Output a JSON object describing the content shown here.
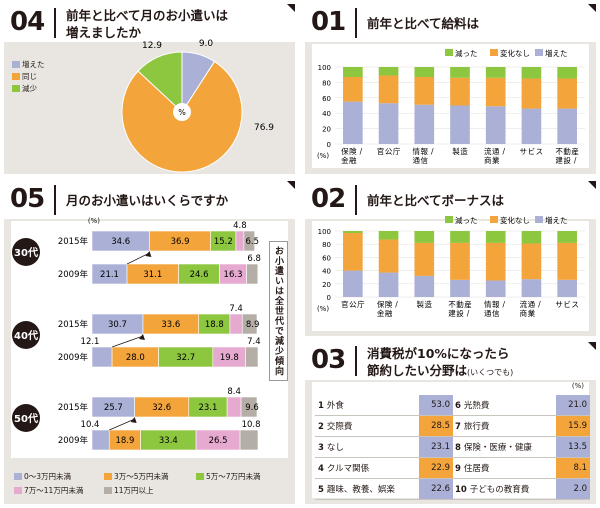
{
  "panel04": {
    "number": "04",
    "title_line1": "前年と比べて月のお小遣いは",
    "title_line2": "増えましたか",
    "center_label": "%",
    "legend": [
      "増えた",
      "同じ",
      "減少"
    ]
  },
  "panel01": {
    "number": "01",
    "title": "前年と比べて給料は",
    "legend": [
      "減った",
      "変化なし",
      "増えた"
    ],
    "yticks": [
      "100",
      "80",
      "60",
      "40",
      "20",
      "0"
    ],
    "yunit": "(%)",
    "categories": [
      "保険・金融",
      "官公庁",
      "情報・通信",
      "製造",
      "流通・商業",
      "サービス",
      "不動産・建設"
    ],
    "cat_display": [
      "保金\n険融\n/",
      "官\n公\n庁",
      "情通\n報信\n/",
      "製\n造",
      "流商\n通業\n/",
      "サ\nビ\nス",
      "不建\n動設\n産/"
    ]
  },
  "panel05": {
    "number": "05",
    "title": "月のお小遣いはいくらですか",
    "unit": "(%)",
    "vertical_note": "お小遣いは全世代で減少傾向",
    "groups": [
      {
        "age": "30代",
        "rows": [
          {
            "year": "2015年",
            "values": [
              34.6,
              36.9,
              15.2,
              4.8,
              6.5
            ]
          },
          {
            "year": "2009年",
            "values": [
              21.1,
              31.1,
              24.6,
              16.3,
              6.8
            ]
          }
        ]
      },
      {
        "age": "40代",
        "rows": [
          {
            "year": "2015年",
            "values": [
              30.7,
              33.6,
              18.8,
              7.4,
              8.9
            ]
          },
          {
            "year": "2009年",
            "values": [
              12.1,
              28.0,
              32.7,
              19.8,
              7.4
            ]
          }
        ]
      },
      {
        "age": "50代",
        "rows": [
          {
            "year": "2015年",
            "values": [
              25.7,
              32.6,
              23.1,
              8.4,
              9.6
            ]
          },
          {
            "year": "2009年",
            "values": [
              10.4,
              18.9,
              33.4,
              26.5,
              10.8
            ]
          }
        ]
      }
    ],
    "legend": [
      "0〜3万円未満",
      "3万〜5万円未満",
      "5万〜7万円未満",
      "7万〜11万円未満",
      "11万円以上"
    ]
  },
  "panel02": {
    "number": "02",
    "title": "前年と比べてボーナスは",
    "legend": [
      "減った",
      "変化なし",
      "増えた"
    ],
    "yticks": [
      "100",
      "80",
      "60",
      "40",
      "20",
      "0"
    ],
    "yunit": "(%)",
    "categories": [
      "官公庁",
      "保険・金融",
      "製造",
      "不動産・建設",
      "情報・通信",
      "流通・商業",
      "サービス"
    ],
    "cat_display": [
      "官\n公\n庁",
      "保金\n険融\n/",
      "製\n造",
      "不建\n動設\n産/",
      "情通\n報信\n/",
      "流商\n通業\n/",
      "サ\nビ\nス"
    ]
  },
  "panel03": {
    "number": "03",
    "title_line1": "消費税が10%になったら",
    "title_line2": "節約したい分野は",
    "title_note": "(いくつでも)",
    "unit": "(%)",
    "left": [
      {
        "rank": "1",
        "label": "外食",
        "value": "53.0"
      },
      {
        "rank": "2",
        "label": "交際費",
        "value": "28.5"
      },
      {
        "rank": "3",
        "label": "なし",
        "value": "23.1"
      },
      {
        "rank": "4",
        "label": "クルマ関係",
        "value": "22.9"
      },
      {
        "rank": "5",
        "label": "趣味、教養、娯楽",
        "value": "22.6"
      }
    ],
    "right": [
      {
        "rank": "6",
        "label": "光熱費",
        "value": "21.0"
      },
      {
        "rank": "7",
        "label": "旅行費",
        "value": "15.9"
      },
      {
        "rank": "8",
        "label": "保険・医療・健康",
        "value": "13.5"
      },
      {
        "rank": "9",
        "label": "住居費",
        "value": "8.1"
      },
      {
        "rank": "10",
        "label": "子どもの教育費",
        "value": "2.0"
      }
    ]
  },
  "colors": {
    "blue": "#aab0d6",
    "orange": "#f3a43a",
    "green": "#8dc63f",
    "pink": "#e6a9cf",
    "gray": "#b5aea6"
  },
  "chart_data": [
    {
      "id": "chart04",
      "type": "pie",
      "labels": [
        "増えた",
        "同じ",
        "減少"
      ],
      "values": [
        9.0,
        76.9,
        12.9
      ],
      "value_labels": [
        "9.0",
        "76.9",
        "12.9"
      ]
    },
    {
      "id": "chart01",
      "type": "bar",
      "stacked": true,
      "categories": [
        "保険・金融",
        "官公庁",
        "情報・通信",
        "製造",
        "流通・商業",
        "サービス",
        "不動産・建設"
      ],
      "series": [
        {
          "name": "増えた",
          "values": [
            55,
            53,
            51,
            50,
            49,
            46,
            46
          ]
        },
        {
          "name": "変化なし",
          "values": [
            32,
            36,
            36,
            36,
            37,
            39,
            39
          ]
        },
        {
          "name": "減った",
          "values": [
            13,
            11,
            13,
            14,
            14,
            15,
            15
          ]
        }
      ],
      "ylim": [
        0,
        100
      ]
    },
    {
      "id": "chart02",
      "type": "bar",
      "stacked": true,
      "categories": [
        "官公庁",
        "保険・金融",
        "製造",
        "不動産・建設",
        "情報・通信",
        "流通・商業",
        "サービス"
      ],
      "series": [
        {
          "name": "増えた",
          "values": [
            40,
            37,
            32,
            26,
            25,
            27,
            26
          ]
        },
        {
          "name": "変化なし",
          "values": [
            57,
            50,
            50,
            56,
            57,
            54,
            56
          ]
        },
        {
          "name": "減った",
          "values": [
            3,
            13,
            18,
            18,
            18,
            19,
            18
          ]
        }
      ],
      "ylim": [
        0,
        100
      ]
    },
    {
      "id": "chart05",
      "type": "bar",
      "orientation": "horizontal",
      "stacked": true,
      "categories": [
        "30代 2015年",
        "30代 2009年",
        "40代 2015年",
        "40代 2009年",
        "50代 2015年",
        "50代 2009年"
      ],
      "series": [
        {
          "name": "0〜3万円未満",
          "values": [
            34.6,
            21.1,
            30.7,
            12.1,
            25.7,
            10.4
          ]
        },
        {
          "name": "3万〜5万円未満",
          "values": [
            36.9,
            31.1,
            33.6,
            28.0,
            32.6,
            18.9
          ]
        },
        {
          "name": "5万〜7万円未満",
          "values": [
            15.2,
            24.6,
            18.8,
            32.7,
            23.1,
            33.4
          ]
        },
        {
          "name": "7万〜11万円未満",
          "values": [
            4.8,
            16.3,
            7.4,
            19.8,
            8.4,
            26.5
          ]
        },
        {
          "name": "11万円以上",
          "values": [
            6.5,
            6.8,
            8.9,
            7.4,
            9.6,
            10.8
          ]
        }
      ]
    }
  ]
}
